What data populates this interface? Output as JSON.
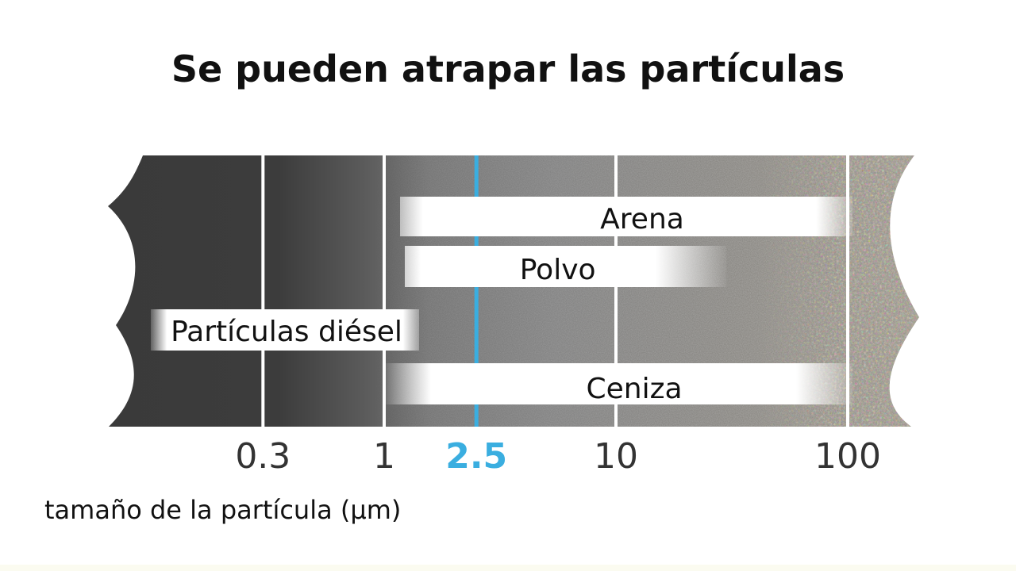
{
  "title": "Se pueden atrapar las partículas",
  "chart_data": {
    "type": "bar",
    "title": "Se pueden atrapar las partículas",
    "xlabel": "tamaño de la partícula (µm)",
    "x_scale": "log",
    "x_ticks": [
      {
        "value": 0.3,
        "label": "0.3"
      },
      {
        "value": 1,
        "label": "1"
      },
      {
        "value": 2.5,
        "label": "2.5",
        "highlight": true
      },
      {
        "value": 10,
        "label": "10"
      },
      {
        "value": 100,
        "label": "100"
      }
    ],
    "ranges": [
      {
        "name": "Arena",
        "from": 1,
        "to": 100
      },
      {
        "name": "Polvo",
        "from": 1,
        "to": 30
      },
      {
        "name": "Partículas diésel",
        "from": 0.1,
        "to": 1
      },
      {
        "name": "Ceniza",
        "from": 1,
        "to": 100
      }
    ],
    "colors": {
      "tick_line": "#ffffff",
      "highlight": "#3aaee0",
      "tick_text": "#333333"
    }
  }
}
